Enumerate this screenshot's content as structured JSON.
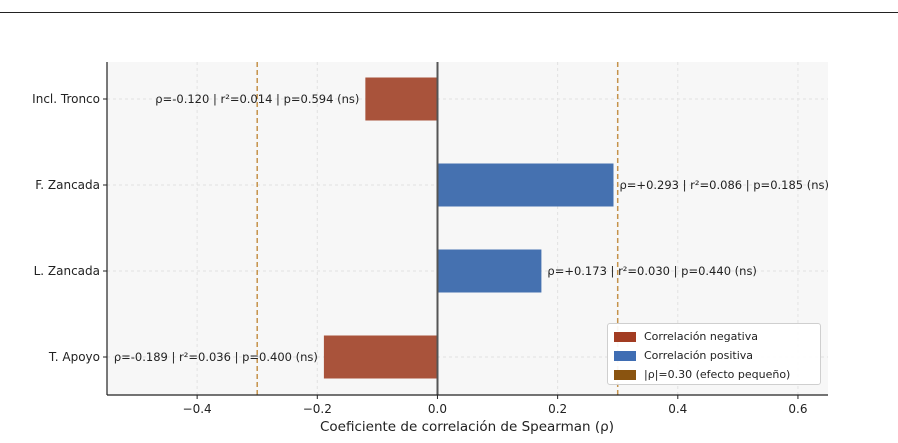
{
  "chart_data": {
    "type": "bar",
    "orientation": "horizontal",
    "categories": [
      "Incl. Tronco",
      "F. Zancada",
      "L. Zancada",
      "T. Apoyo"
    ],
    "values": [
      -0.12,
      0.293,
      0.173,
      -0.189
    ],
    "annotations": [
      "ρ=-0.120  |  r²=0.014  |  p=0.594  (ns)",
      "ρ=+0.293  |  r²=0.086  |  p=0.185  (ns)",
      "ρ=+0.173  |  r²=0.030  |  p=0.440  (ns)",
      "ρ=-0.189  |  r²=0.036  |  p=0.400  (ns)"
    ],
    "xlabel": "Coeficiente de correlación de Spearman (ρ)",
    "ylabel": "",
    "xlim": [
      -0.55,
      0.65
    ],
    "xticks": [
      -0.4,
      -0.2,
      0.0,
      0.2,
      0.4,
      0.6
    ],
    "xtick_labels": [
      "−0.4",
      "−0.2",
      "0.0",
      "0.2",
      "0.4",
      "0.6"
    ],
    "reference_lines": [
      -0.3,
      0.3
    ],
    "grid": true,
    "legend_position": "bottom-right",
    "legend": [
      "Correlación negativa",
      "Correlación positiva",
      "|ρ|=0.30 (efecto pequeño)"
    ],
    "colors": {
      "negative": "#a9533b",
      "positive": "#4571b0",
      "threshold": "#c5924a",
      "legend_negative": "#a23c22",
      "legend_positive": "#3f6db3",
      "legend_threshold": "#8a5410",
      "plot_bg": "#f7f7f7",
      "zero_line": "#555555"
    }
  }
}
